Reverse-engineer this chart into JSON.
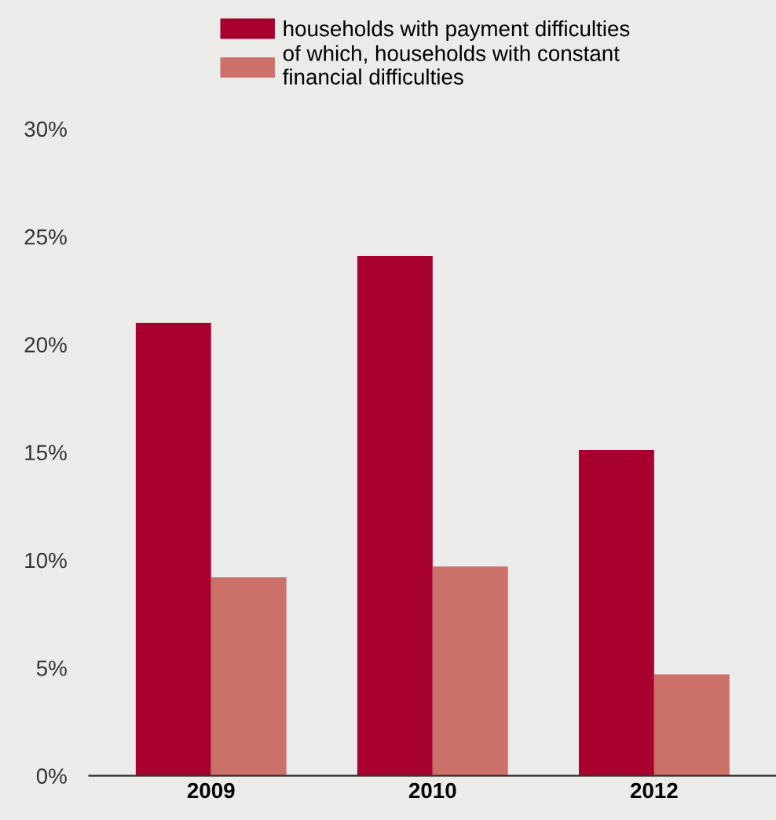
{
  "chart_data": {
    "type": "bar",
    "categories": [
      "2009",
      "2010",
      "2012"
    ],
    "series": [
      {
        "name": "households with payment difficulties",
        "color": "#a8002f",
        "values": [
          21,
          24.1,
          15.1
        ]
      },
      {
        "name": "of which, households with constant\nfinancial difficulties",
        "color": "#cc7169",
        "values": [
          9.2,
          9.7,
          4.7
        ]
      }
    ],
    "ylim": [
      0,
      30
    ],
    "yticks": [
      {
        "value": 0,
        "label": "0%"
      },
      {
        "value": 5,
        "label": "5%"
      },
      {
        "value": 10,
        "label": "10%"
      },
      {
        "value": 15,
        "label": "15%"
      },
      {
        "value": 20,
        "label": "20%"
      },
      {
        "value": 25,
        "label": "25%"
      },
      {
        "value": 30,
        "label": "30%"
      }
    ],
    "grid": false,
    "legend": "top"
  }
}
